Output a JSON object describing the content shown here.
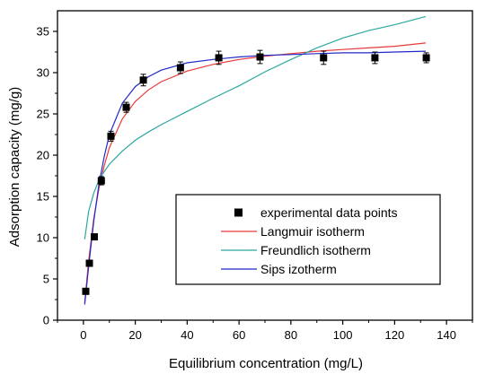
{
  "chart_data": {
    "type": "scatter",
    "xlabel": "Equilibrium concentration (mg/L)",
    "ylabel": "Adsorption capacity (mg/g)",
    "xlim": [
      -10,
      150
    ],
    "ylim": [
      0,
      37.5
    ],
    "xticks": [
      0,
      20,
      40,
      60,
      80,
      100,
      120,
      140
    ],
    "yticks": [
      0,
      5,
      10,
      15,
      20,
      25,
      30,
      35
    ],
    "grid": false,
    "legend_position": "bottom-right",
    "series": [
      {
        "name": "experimental data points",
        "kind": "points",
        "color": "#000000",
        "x": [
          0.9,
          2.3,
          4.2,
          6.9,
          10.6,
          16.5,
          23.1,
          37.4,
          52.2,
          68.1,
          92.6,
          112.4,
          132.2
        ],
        "y": [
          3.5,
          6.9,
          10.1,
          16.9,
          22.3,
          25.8,
          29.1,
          30.6,
          31.8,
          31.9,
          31.8,
          31.8,
          31.8
        ],
        "err": [
          0.3,
          0.3,
          0.3,
          0.5,
          0.6,
          0.6,
          0.7,
          0.7,
          0.8,
          0.8,
          0.8,
          0.7,
          0.6
        ]
      },
      {
        "name": "Langmuir isotherm",
        "kind": "line",
        "color": "#e8393a",
        "x": [
          0.5,
          2,
          4,
          6,
          8,
          10,
          15,
          20,
          25,
          30,
          40,
          50,
          60,
          70,
          80,
          90,
          100,
          110,
          120,
          132
        ],
        "y": [
          2.1,
          7.2,
          12.3,
          16.0,
          18.7,
          20.9,
          24.4,
          26.5,
          27.9,
          28.9,
          30.2,
          31.0,
          31.6,
          32.0,
          32.3,
          32.6,
          32.8,
          33.0,
          33.2,
          33.6
        ]
      },
      {
        "name": "Freundlich isotherm",
        "kind": "line",
        "color": "#2ba79f",
        "x": [
          0.5,
          2,
          4,
          6,
          8,
          10,
          15,
          20,
          25,
          30,
          40,
          50,
          60,
          70,
          80,
          90,
          100,
          110,
          120,
          132
        ],
        "y": [
          9.8,
          13.2,
          15.4,
          17.0,
          18.0,
          18.9,
          20.5,
          21.8,
          22.8,
          23.7,
          25.3,
          26.9,
          28.4,
          30.1,
          31.6,
          33.0,
          34.2,
          35.1,
          35.8,
          36.8
        ]
      },
      {
        "name": "Sips izotherm",
        "kind": "line",
        "color": "#1f2ac8",
        "x": [
          0.5,
          2,
          4,
          6,
          8,
          10,
          15,
          20,
          25,
          30,
          40,
          50,
          60,
          70,
          80,
          90,
          100,
          110,
          120,
          132
        ],
        "y": [
          1.9,
          6.5,
          12.0,
          16.5,
          19.8,
          22.5,
          26.3,
          28.3,
          29.5,
          30.3,
          31.2,
          31.6,
          31.9,
          32.1,
          32.2,
          32.3,
          32.4,
          32.4,
          32.5,
          32.6
        ]
      }
    ]
  }
}
